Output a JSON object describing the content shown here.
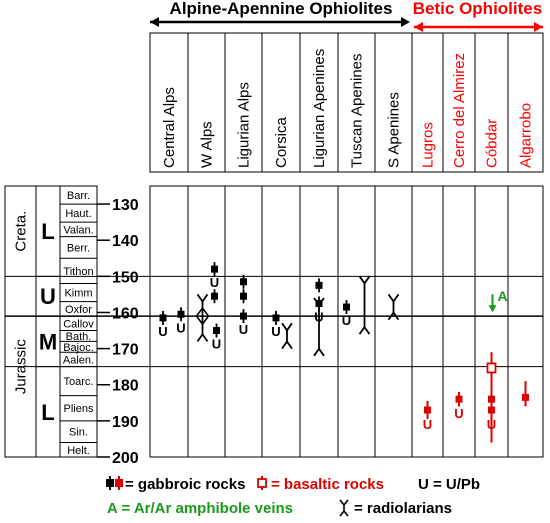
{
  "groups": {
    "alpine": {
      "label": "Alpine-Apennine Ophiolites",
      "color": "#000000"
    },
    "betic": {
      "label": "Betic Ophiolites",
      "color": "#ff0000"
    }
  },
  "columns": [
    {
      "label": "Central Alps",
      "group": "alpine"
    },
    {
      "label": "W Alps",
      "group": "alpine"
    },
    {
      "label": "Ligurian Alps",
      "group": "alpine"
    },
    {
      "label": "Corsica",
      "group": "alpine"
    },
    {
      "label": "Ligurian Apenines",
      "group": "alpine"
    },
    {
      "label": "Tuscan Apenines",
      "group": "alpine"
    },
    {
      "label": "S Apenines",
      "group": "alpine"
    },
    {
      "label": "Lugros",
      "group": "betic"
    },
    {
      "label": "Cerro del Almirez",
      "group": "betic"
    },
    {
      "label": "Cóbdar",
      "group": "betic"
    },
    {
      "label": "Algarrobo",
      "group": "betic"
    }
  ],
  "periods": [
    {
      "label": "Creta.",
      "from": 125,
      "to": 150
    },
    {
      "label": "Jurassic",
      "from": 150,
      "to": 200
    }
  ],
  "epochs": [
    {
      "label": "L",
      "from": 125,
      "to": 150
    },
    {
      "label": "U",
      "from": 150,
      "to": 161
    },
    {
      "label": "M",
      "from": 161,
      "to": 175
    },
    {
      "label": "L",
      "from": 175,
      "to": 200
    }
  ],
  "stages": [
    {
      "label": "Barr.",
      "from": 125,
      "to": 130
    },
    {
      "label": "Haut.",
      "from": 130,
      "to": 135
    },
    {
      "label": "Valan.",
      "from": 135,
      "to": 139
    },
    {
      "label": "Berr.",
      "from": 139,
      "to": 145
    },
    {
      "label": "Tithon",
      "from": 145,
      "to": 152
    },
    {
      "label": "Kimm",
      "from": 152,
      "to": 157
    },
    {
      "label": "Oxfor",
      "from": 157,
      "to": 161
    },
    {
      "label": "Callov",
      "from": 161,
      "to": 165
    },
    {
      "label": "Bath.",
      "from": 165,
      "to": 168
    },
    {
      "label": "Bajoc.",
      "from": 168,
      "to": 171
    },
    {
      "label": "Aalen.",
      "from": 171,
      "to": 175
    },
    {
      "label": "Toarc.",
      "from": 175,
      "to": 183
    },
    {
      "label": "Pliens",
      "from": 183,
      "to": 190
    },
    {
      "label": "Sin.",
      "from": 190,
      "to": 196
    },
    {
      "label": "Helt.",
      "from": 196,
      "to": 200
    }
  ],
  "age_axis": {
    "ticks": [
      130,
      140,
      150,
      160,
      170,
      180,
      190,
      200
    ],
    "range": [
      125,
      200
    ]
  },
  "boundaries": [
    150,
    161,
    175
  ],
  "gabbro": [
    {
      "col": 0,
      "marks": [
        161.5
      ],
      "u": [
        true
      ]
    },
    {
      "col": 0,
      "marks": [
        160.5
      ],
      "u": [
        true
      ],
      "dx": 12
    },
    {
      "col": 1,
      "marks": [
        148.0,
        155.5
      ],
      "u": [
        true,
        false
      ],
      "dx": 8
    },
    {
      "col": 1,
      "marks": [
        165.0
      ],
      "u": [
        true
      ],
      "dx": 10
    },
    {
      "col": 2,
      "marks": [
        151.5,
        155.5,
        161.0
      ],
      "u": [
        false,
        false,
        true
      ]
    },
    {
      "col": 3,
      "marks": [
        161.5
      ],
      "u": [
        true
      ],
      "dx": -5
    },
    {
      "col": 4,
      "marks": [
        152.5,
        157.5
      ],
      "u": [
        false,
        true
      ]
    },
    {
      "col": 5,
      "marks": [
        158.5
      ],
      "u": [
        true
      ],
      "dx": -10
    }
  ],
  "basalt": [
    {
      "col": 7,
      "marks": [
        187.0
      ],
      "u": [
        true
      ]
    },
    {
      "col": 8,
      "marks": [
        184.0
      ],
      "u": [
        true
      ]
    },
    {
      "col": 9,
      "marks": [
        175.5,
        184.0,
        187.0
      ],
      "u": [
        false,
        false,
        true
      ]
    },
    {
      "col": 10,
      "marks": [
        183.5
      ],
      "u": [
        false
      ]
    }
  ],
  "basalt_lines": [
    {
      "col": 7,
      "from": 184.5,
      "to": 189.5
    },
    {
      "col": 8,
      "from": 182.0,
      "to": 186.0
    },
    {
      "col": 9,
      "from": 171.0,
      "to": 196.0
    },
    {
      "col": 10,
      "from": 179.0,
      "to": 186.0
    }
  ],
  "radiolarians": [
    {
      "col": 1,
      "from": 155.0,
      "to": 168.0,
      "dx": -4
    },
    {
      "col": 3,
      "from": 163.0,
      "to": 170.0,
      "dx": 6
    },
    {
      "col": 4,
      "from": 156.0,
      "to": 172.0
    },
    {
      "col": 5,
      "from": 150.0,
      "to": 166.0,
      "dx": 8
    },
    {
      "col": 6,
      "from": 155.0,
      "to": 162.0
    }
  ],
  "ar_ar": {
    "col": 9,
    "age": 158.0,
    "label": "A",
    "color": "#1a9a1a"
  },
  "legend": {
    "gabbro": "= gabbroic rocks",
    "basalt": "= basaltic rocks",
    "upb": "U = U/Pb",
    "arar": "A = Ar/Ar amphibole veins",
    "radiolarians": "= radiolarians"
  },
  "u_glyph": "U",
  "colors": {
    "gabbro": "#000000",
    "basalt": "#dd0000",
    "arar": "#1a9a1a"
  }
}
